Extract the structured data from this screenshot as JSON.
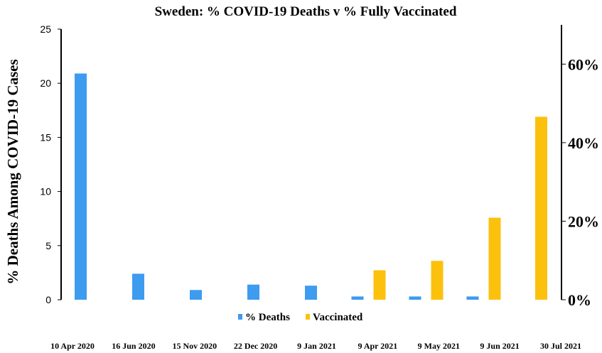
{
  "chart_data": {
    "type": "bar",
    "title": "Sweden: % COVID-19 Deaths v % Fully Vaccinated",
    "ylabel": "% Deaths Among COVID-19 Cases",
    "categories": [
      "10 Apr 2020",
      "16 Jun 2020",
      "15 Nov 2020",
      "22 Dec 2020",
      "9 Jan 2021",
      "9 Apr 2021",
      "9 May  2021",
      "9 Jun 2021",
      "30 Jul 2021"
    ],
    "left_axis": {
      "ylim": [
        0,
        25
      ],
      "ticks": [
        "0",
        "5",
        "10",
        "15",
        "20",
        "25"
      ]
    },
    "right_axis": {
      "ylim": [
        0,
        70
      ],
      "ticks": [
        "0%",
        "20%",
        "40%",
        "60%"
      ]
    },
    "series": [
      {
        "name": "% Deaths",
        "axis": "left",
        "color": "#3d9bf0",
        "values": [
          20.9,
          2.4,
          0.9,
          1.4,
          1.3,
          0.3,
          0.3,
          0.3,
          0
        ]
      },
      {
        "name": "Vaccinated",
        "axis": "right",
        "color": "#fcc10d",
        "values": [
          0,
          0,
          0,
          0,
          0,
          7.5,
          9.9,
          20.9,
          46.6
        ]
      }
    ],
    "legend": {
      "position": "bottom"
    },
    "grid": false
  }
}
